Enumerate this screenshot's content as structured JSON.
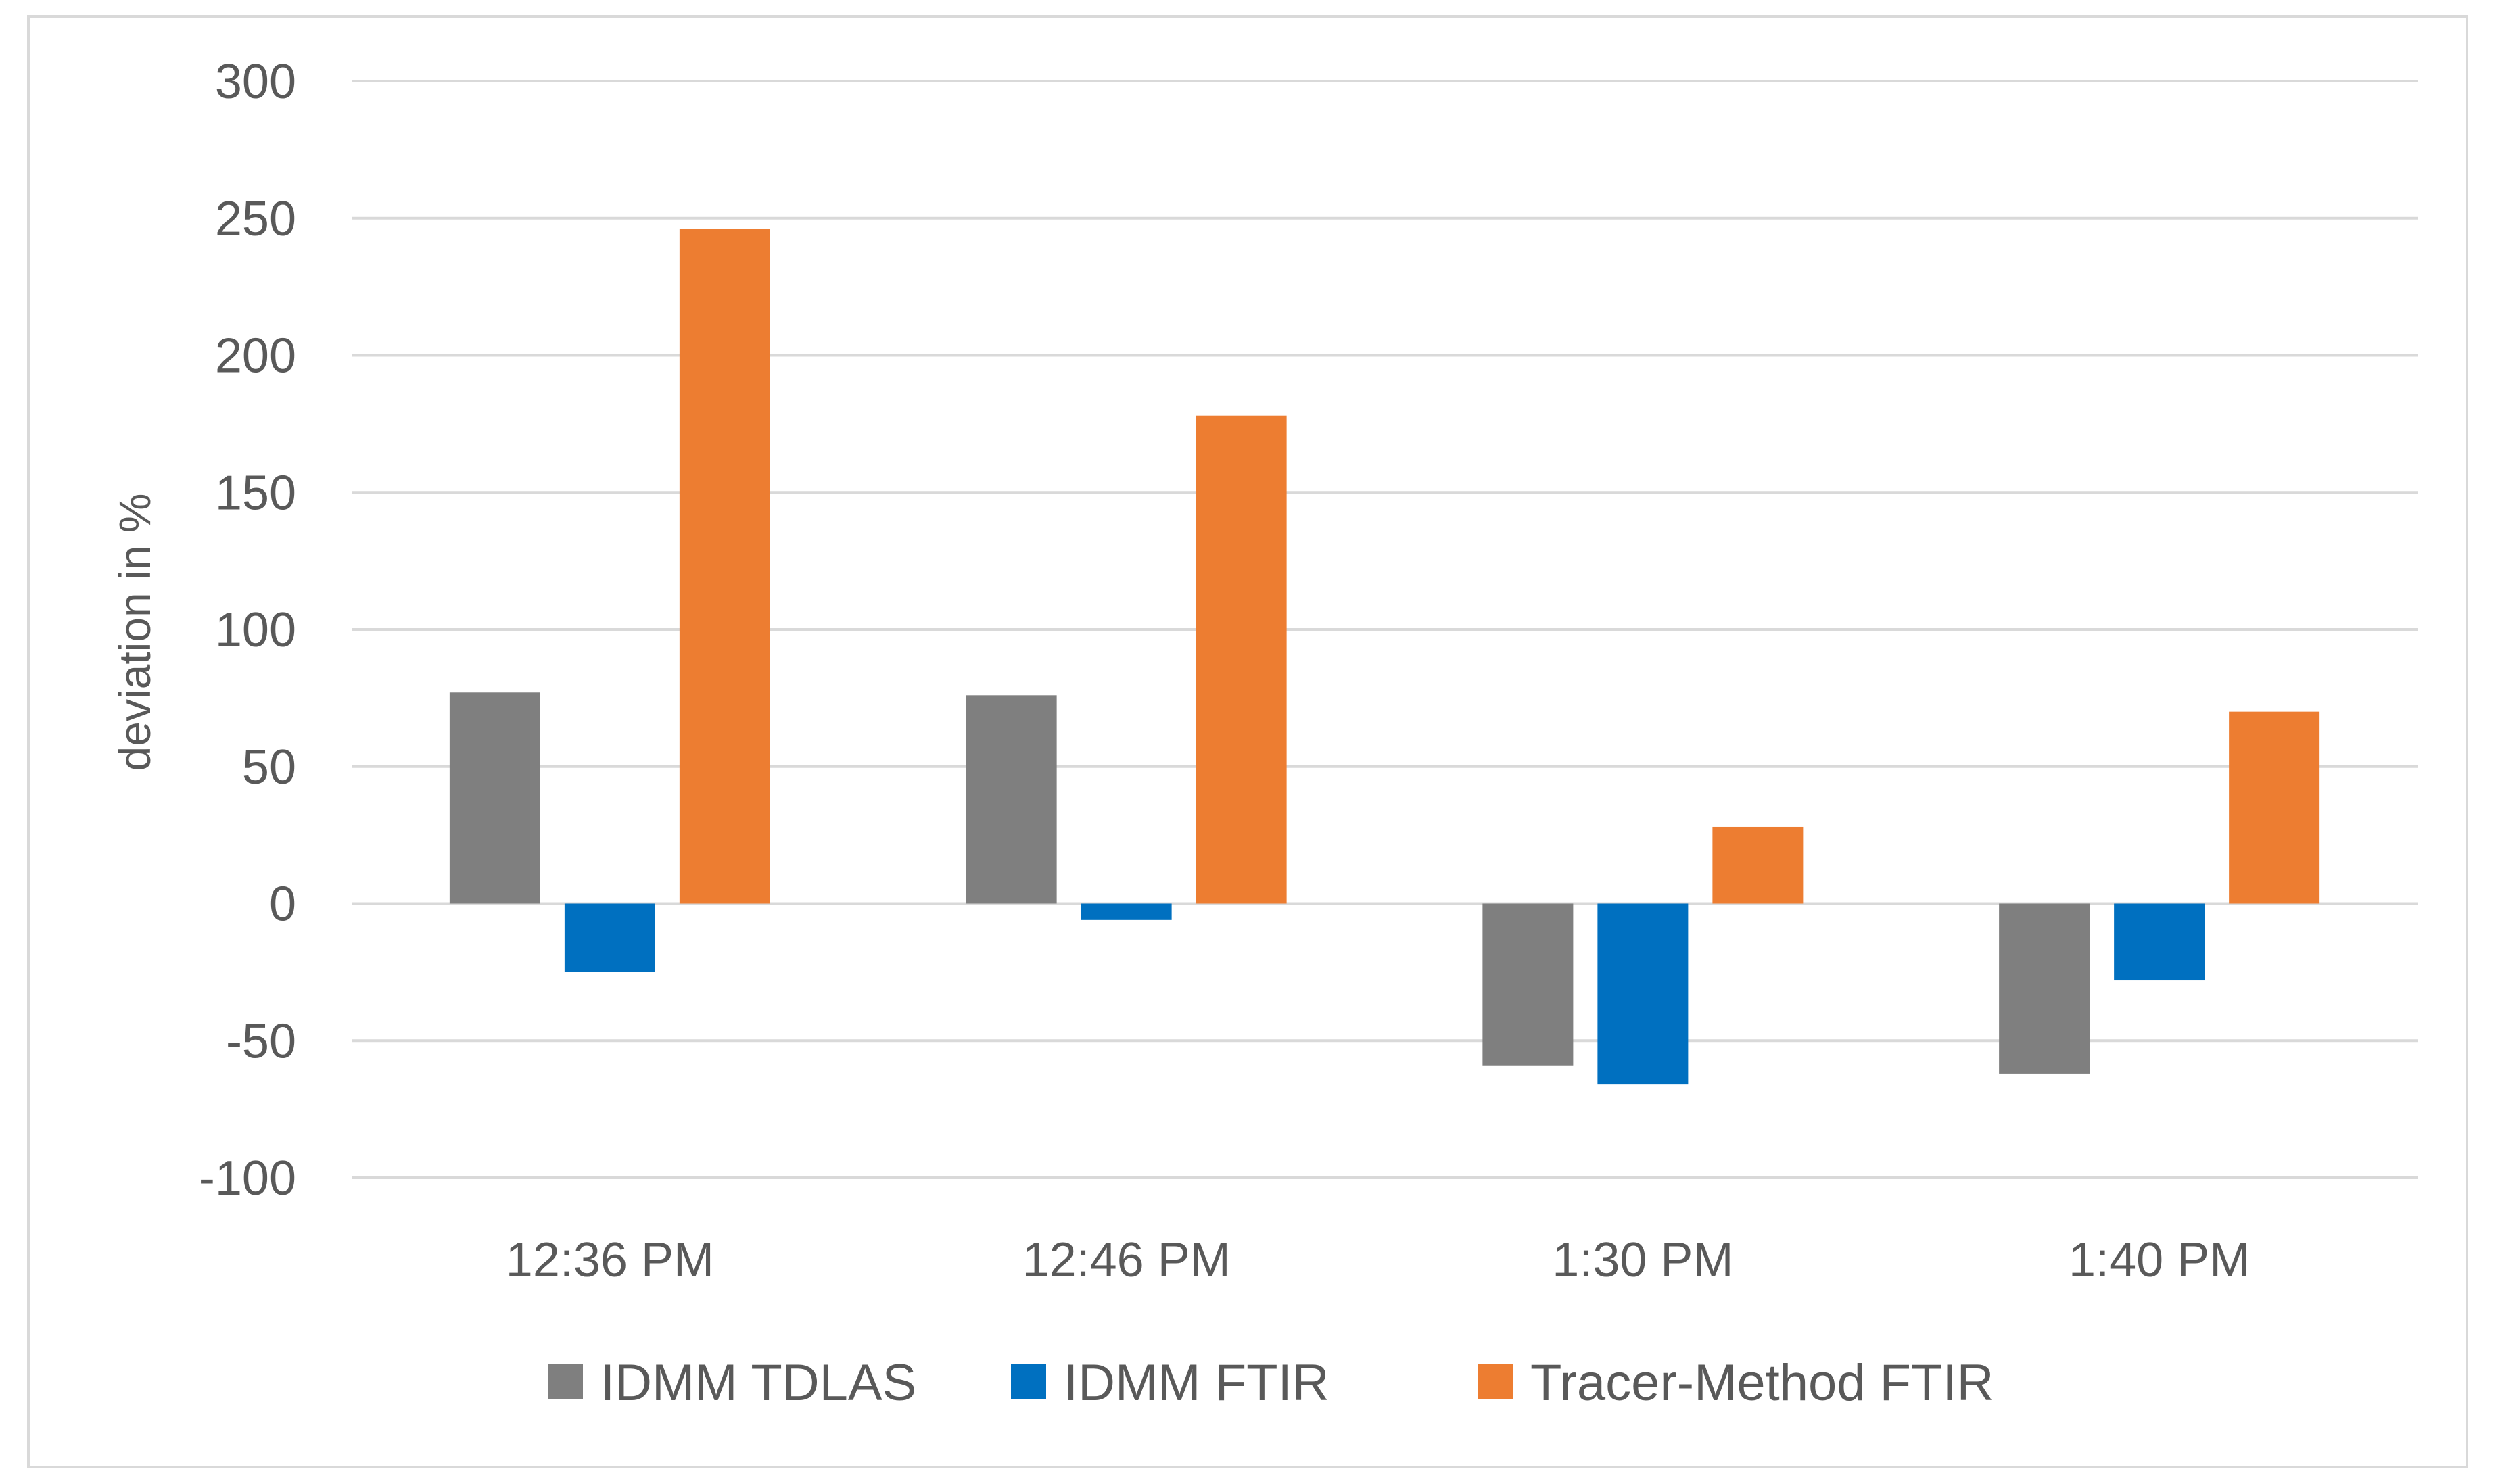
{
  "chart_data": {
    "type": "bar",
    "title": "",
    "xlabel": "",
    "ylabel": "deviation in %",
    "ylim": [
      -100,
      300
    ],
    "yticks": [
      300,
      250,
      200,
      150,
      100,
      50,
      0,
      -50,
      -100
    ],
    "ytick_labels": [
      "300",
      "250",
      "200",
      "150",
      "100",
      "50",
      "0",
      "-50",
      "-100"
    ],
    "grid": true,
    "legend_position": "bottom",
    "categories": [
      "12:36 PM",
      "12:46 PM",
      "1:30 PM",
      "1:40 PM"
    ],
    "series": [
      {
        "name": "IDMM TDLAS",
        "color": "#7f7f7f",
        "values": [
          77,
          76,
          -59,
          -62
        ]
      },
      {
        "name": "IDMM FTIR",
        "color": "#0070c0",
        "values": [
          -25,
          -6,
          -66,
          -28
        ]
      },
      {
        "name": "Tracer-Method FTIR",
        "color": "#ed7d31",
        "values": [
          246,
          178,
          28,
          70
        ]
      }
    ]
  }
}
